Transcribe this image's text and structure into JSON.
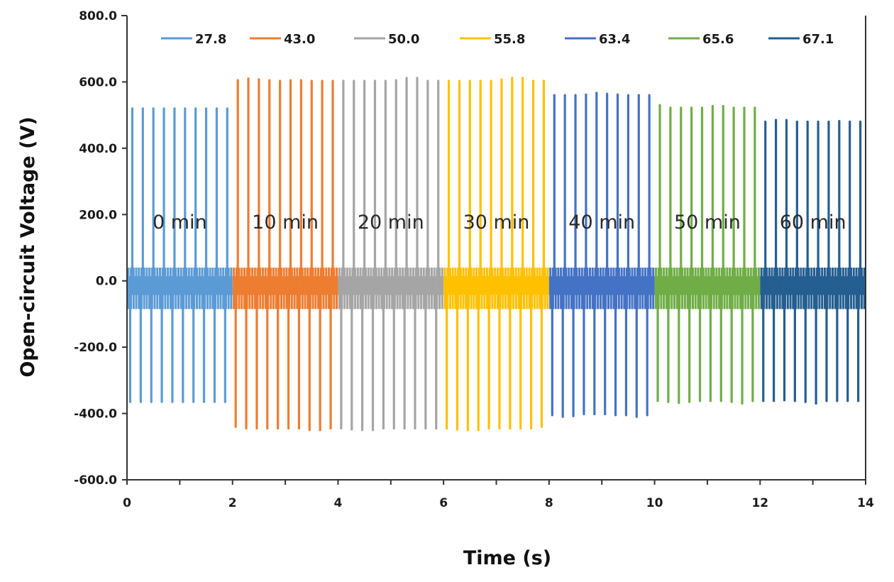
{
  "chart_data": {
    "type": "line",
    "title": "",
    "xlabel": "Time (s)",
    "ylabel": "Open-circuit Voltage (V)",
    "xlim": [
      0,
      14
    ],
    "ylim": [
      -600,
      800
    ],
    "x_ticks": [
      "0",
      "2",
      "4",
      "6",
      "8",
      "10",
      "12",
      "14"
    ],
    "y_ticks": [
      "800.0",
      "600.0",
      "400.0",
      "200.0",
      "0.0",
      "-200.0",
      "-400.0",
      "-600.0"
    ],
    "x_tick_values": [
      0,
      2,
      4,
      6,
      8,
      10,
      12,
      14
    ],
    "y_tick_values": [
      800,
      600,
      400,
      200,
      0,
      -200,
      -400,
      -600
    ],
    "grid": false,
    "legend_position": "top",
    "pulses_per_segment": 10,
    "pulse_period_s": 0.2,
    "baseline_band": [
      -85,
      40
    ],
    "series": [
      {
        "name": "27.8",
        "color": "#5b9bd5",
        "t_start": 0,
        "t_end": 2,
        "annotation": "0 min",
        "peaks": [
          520,
          520,
          520,
          520,
          520,
          520,
          520,
          520,
          520,
          520
        ],
        "troughs": [
          -365,
          -365,
          -365,
          -365,
          -365,
          -365,
          -365,
          -365,
          -365,
          -365
        ]
      },
      {
        "name": "43.0",
        "color": "#ed7d31",
        "t_start": 2,
        "t_end": 4,
        "annotation": "10 min",
        "peaks": [
          605,
          610,
          608,
          605,
          603,
          605,
          605,
          603,
          603,
          603
        ],
        "troughs": [
          -440,
          -445,
          -445,
          -445,
          -445,
          -445,
          -445,
          -450,
          -450,
          -445
        ]
      },
      {
        "name": "50.0",
        "color": "#a5a5a5",
        "t_start": 4,
        "t_end": 6,
        "annotation": "20 min",
        "peaks": [
          603,
          603,
          603,
          603,
          603,
          605,
          612,
          612,
          603,
          603
        ],
        "troughs": [
          -445,
          -448,
          -450,
          -450,
          -445,
          -445,
          -445,
          -445,
          -445,
          -445
        ]
      },
      {
        "name": "55.8",
        "color": "#ffc000",
        "t_start": 6,
        "t_end": 8,
        "annotation": "30 min",
        "peaks": [
          603,
          603,
          603,
          603,
          603,
          607,
          612,
          612,
          603,
          603
        ],
        "troughs": [
          -445,
          -448,
          -450,
          -450,
          -445,
          -445,
          -445,
          -445,
          -445,
          -440
        ]
      },
      {
        "name": "63.4",
        "color": "#4472c4",
        "t_start": 8,
        "t_end": 10,
        "annotation": "40 min",
        "peaks": [
          560,
          560,
          560,
          562,
          567,
          564,
          562,
          560,
          560,
          560
        ],
        "troughs": [
          -405,
          -410,
          -408,
          -402,
          -402,
          -402,
          -405,
          -405,
          -410,
          -405
        ]
      },
      {
        "name": "65.6",
        "color": "#70ad47",
        "t_start": 10,
        "t_end": 12,
        "annotation": "50 min",
        "peaks": [
          530,
          522,
          522,
          522,
          522,
          527,
          527,
          522,
          522,
          522
        ],
        "troughs": [
          -362,
          -365,
          -368,
          -365,
          -362,
          -362,
          -362,
          -365,
          -370,
          -362
        ]
      },
      {
        "name": "67.1",
        "color": "#255e91",
        "t_start": 12,
        "t_end": 14,
        "annotation": "60 min",
        "peaks": [
          480,
          485,
          485,
          480,
          480,
          480,
          480,
          482,
          480,
          480
        ],
        "troughs": [
          -362,
          -362,
          -360,
          -362,
          -365,
          -370,
          -362,
          -362,
          -362,
          -362
        ]
      }
    ]
  }
}
